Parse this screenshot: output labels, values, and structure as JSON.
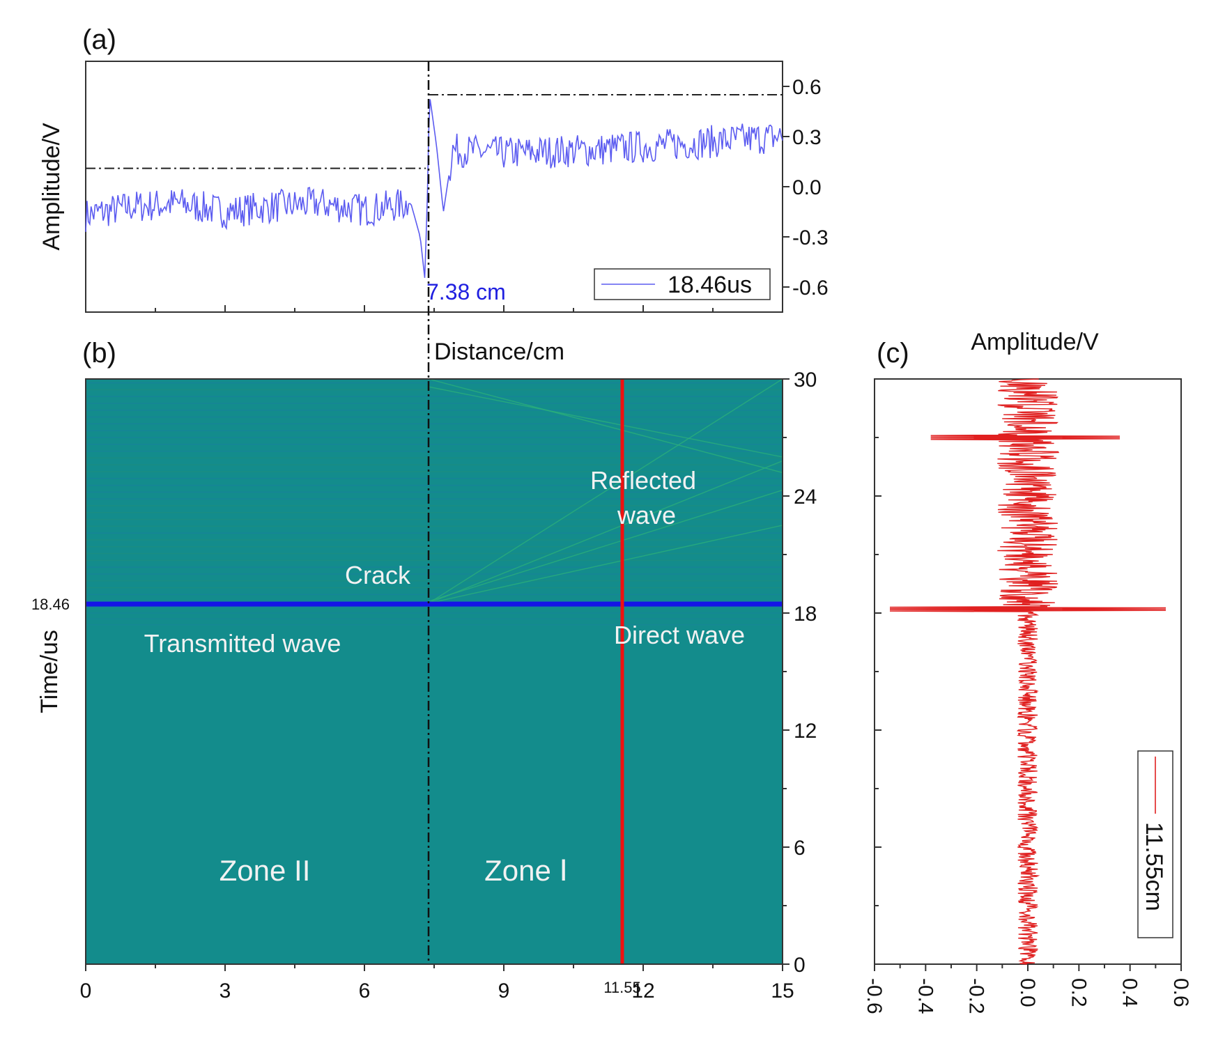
{
  "chart_data": [
    {
      "panel": "(a)",
      "type": "line",
      "ylabel": "Amplitude/V",
      "xlabel": "Distance/cm",
      "xlim": [
        0,
        15
      ],
      "ylim": [
        -0.75,
        0.75
      ],
      "yticks": [
        "0.6",
        "0.3",
        "0.0",
        "-0.3",
        "-0.6"
      ],
      "ytick_values": [
        0.6,
        0.3,
        0.0,
        -0.3,
        -0.6
      ],
      "legend": "18.46us",
      "series_color": "#5b5bf0",
      "crack_position": 7.38,
      "crack_label": "7.38 cm",
      "pre_crack_level": 0.11,
      "post_crack_level": 0.55,
      "peak_max": 0.55,
      "peak_min": -0.55,
      "trend": [
        {
          "x": 0.0,
          "y": -0.17
        },
        {
          "x": 1.0,
          "y": -0.12
        },
        {
          "x": 2.0,
          "y": -0.1
        },
        {
          "x": 3.0,
          "y": -0.15
        },
        {
          "x": 4.0,
          "y": -0.12
        },
        {
          "x": 5.0,
          "y": -0.1
        },
        {
          "x": 6.0,
          "y": -0.14
        },
        {
          "x": 7.0,
          "y": -0.1
        },
        {
          "x": 7.2,
          "y": -0.3
        },
        {
          "x": 7.3,
          "y": -0.55
        },
        {
          "x": 7.36,
          "y": 0.0
        },
        {
          "x": 7.4,
          "y": 0.55
        },
        {
          "x": 7.55,
          "y": 0.25
        },
        {
          "x": 7.7,
          "y": -0.15
        },
        {
          "x": 7.9,
          "y": 0.22
        },
        {
          "x": 9.0,
          "y": 0.2
        },
        {
          "x": 11.0,
          "y": 0.22
        },
        {
          "x": 13.0,
          "y": 0.26
        },
        {
          "x": 15.0,
          "y": 0.3
        }
      ]
    },
    {
      "panel": "(b)",
      "type": "heatmap",
      "ylabel": "Time/us",
      "xlim": [
        0,
        15
      ],
      "ylim": [
        0,
        30
      ],
      "xticks": [
        "0",
        "3",
        "6",
        "9",
        "12",
        "15"
      ],
      "xtick_values": [
        0,
        3,
        6,
        9,
        12,
        15
      ],
      "yticks": [
        "0",
        "6",
        "12",
        "18",
        "24",
        "30"
      ],
      "ytick_values": [
        0,
        6,
        12,
        18,
        24,
        30
      ],
      "background_color": "#138c8c",
      "highlight_time": 18.46,
      "highlight_time_label": "18.46",
      "highlight_distance": 11.55,
      "highlight_distance_label": "11.55",
      "crack_position": 7.38,
      "annotations": {
        "reflected_line1": "Reflected",
        "reflected_line2": "wave",
        "crack": "Crack",
        "transmitted": "Transmitted wave",
        "direct": "Direct wave",
        "zone2": "Zone II",
        "zone1": "Zone Ⅰ"
      }
    },
    {
      "panel": "(c)",
      "type": "line",
      "xlabel": "Amplitude/V",
      "xlim": [
        -0.6,
        0.6
      ],
      "ylim": [
        0,
        30
      ],
      "xticks": [
        "-0.6",
        "-0.4",
        "-0.2",
        "0.0",
        "0.2",
        "0.4",
        "0.6"
      ],
      "xtick_values": [
        -0.6,
        -0.4,
        -0.2,
        0.0,
        0.2,
        0.4,
        0.6
      ],
      "legend": "11.55cm",
      "series_color": "#e02020",
      "spikes": [
        {
          "time": 18.2,
          "min": -0.54,
          "max": 0.54
        },
        {
          "time": 27.0,
          "min": -0.38,
          "max": 0.36
        }
      ],
      "noise_levels": [
        {
          "from": 0,
          "to": 18,
          "amplitude": 0.04
        },
        {
          "from": 18,
          "to": 30,
          "amplitude": 0.12
        }
      ]
    }
  ]
}
